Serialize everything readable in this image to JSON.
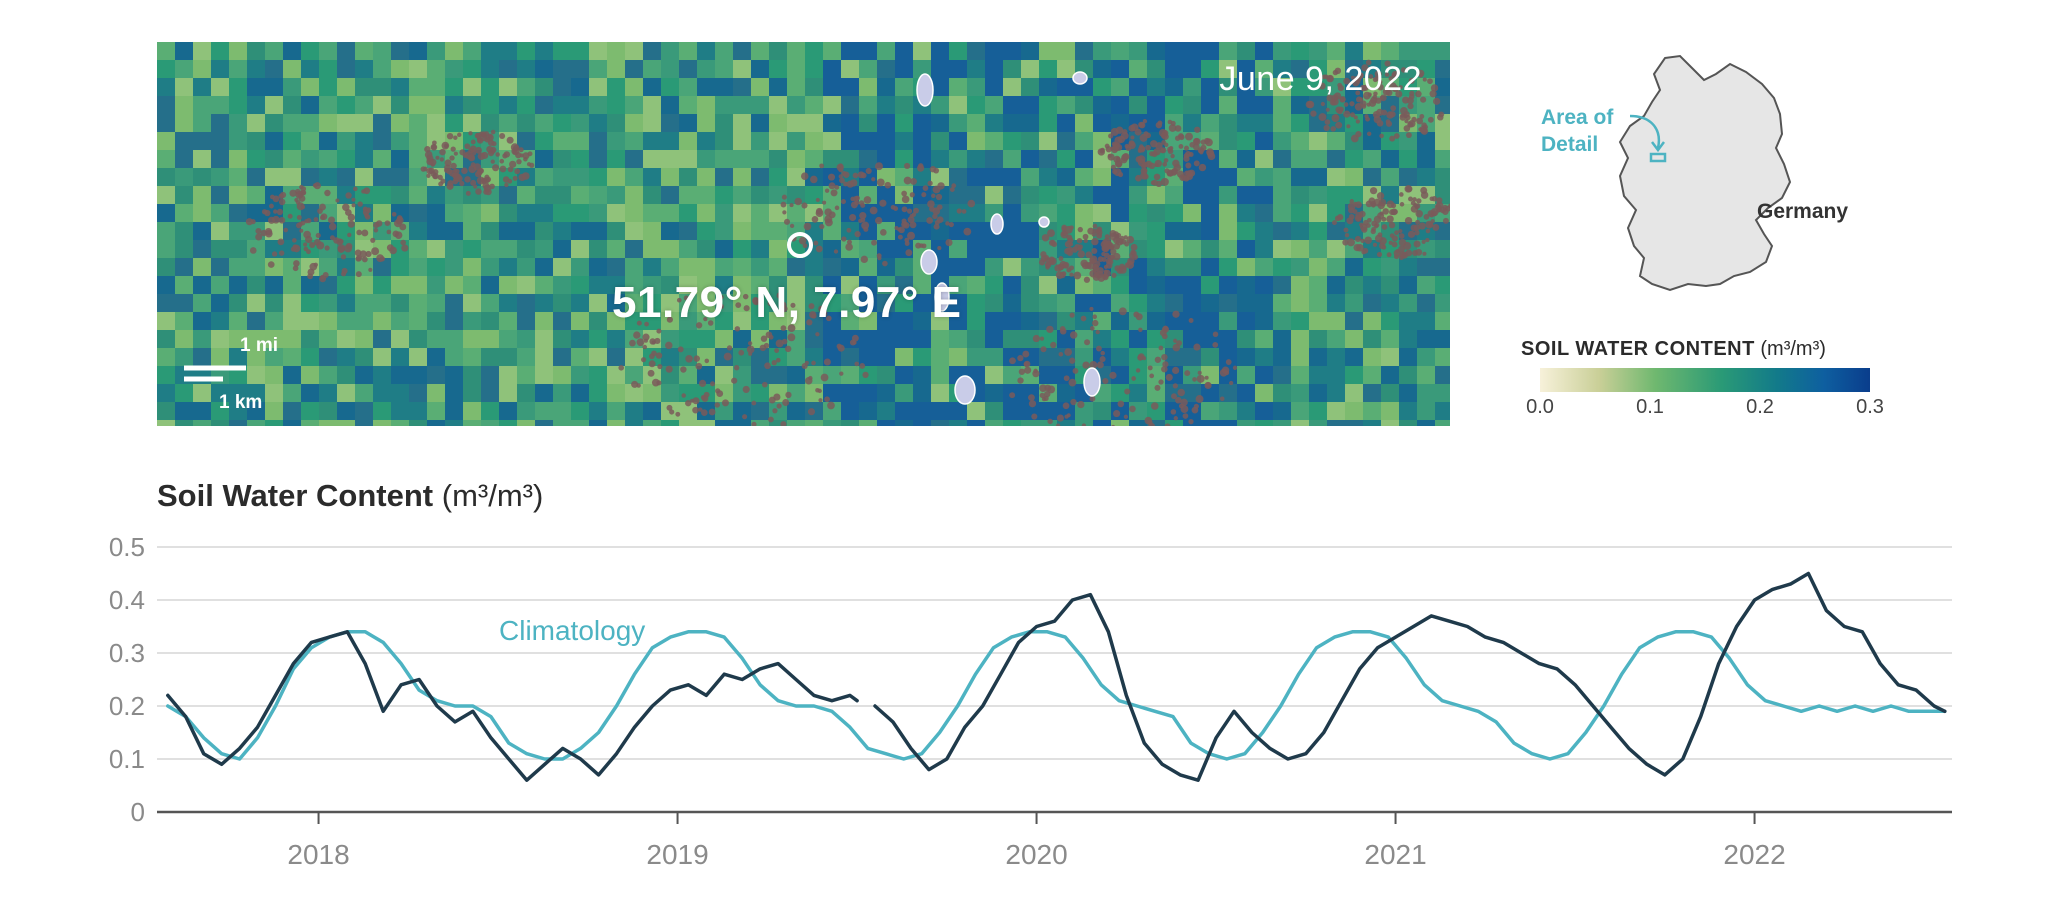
{
  "map": {
    "date": "June 9, 2022",
    "coordinates": "51.79° N, 7.97° E",
    "scale_mi": "1 mi",
    "scale_km": "1 km"
  },
  "locator": {
    "area_label_line1": "Area of",
    "area_label_line2": "Detail",
    "country": "Germany"
  },
  "legend": {
    "title": "SOIL WATER CONTENT",
    "unit": "(m³/m³)",
    "ticks": [
      "0.0",
      "0.1",
      "0.2",
      "0.3"
    ],
    "range": [
      0.0,
      0.3
    ],
    "colors": [
      "#f7f1da",
      "#6fb86f",
      "#2a9a76",
      "#0a3d8c"
    ]
  },
  "colors": {
    "observed": "#1f3a4b",
    "climatology": "#4db3c2",
    "grid": "#d6d6d6",
    "axis_text": "#8a8a8a"
  },
  "chart_data": {
    "type": "line",
    "title": "Soil Water Content",
    "title_unit": "(m³/m³)",
    "xlabel": "",
    "ylabel": "",
    "xlim": [
      2017.55,
      2022.55
    ],
    "ylim": [
      0,
      0.5
    ],
    "yticks": [
      "0",
      "0.1",
      "0.2",
      "0.3",
      "0.4",
      "0.5"
    ],
    "yticks_values": [
      0,
      0.1,
      0.2,
      0.3,
      0.4,
      0.5
    ],
    "xticks": [
      "2018",
      "2019",
      "2020",
      "2021",
      "2022"
    ],
    "xticks_values": [
      2018,
      2019,
      2020,
      2021,
      2022
    ],
    "grid": true,
    "series": [
      {
        "name": "",
        "x": [
          2017.58,
          2017.63,
          2017.68,
          2017.73,
          2017.78,
          2017.83,
          2017.88,
          2017.93,
          2017.98,
          2018.03,
          2018.08,
          2018.13,
          2018.18,
          2018.23,
          2018.28,
          2018.33,
          2018.38,
          2018.43,
          2018.48,
          2018.53,
          2018.58,
          2018.63,
          2018.68,
          2018.73,
          2018.78,
          2018.83,
          2018.88,
          2018.93,
          2018.98,
          2019.03,
          2019.08,
          2019.13,
          2019.18,
          2019.23,
          2019.28,
          2019.33,
          2019.38,
          2019.43,
          2019.48,
          2019.5
        ],
        "values": [
          0.22,
          0.18,
          0.11,
          0.09,
          0.12,
          0.16,
          0.22,
          0.28,
          0.32,
          0.33,
          0.34,
          0.28,
          0.19,
          0.24,
          0.25,
          0.2,
          0.17,
          0.19,
          0.14,
          0.1,
          0.06,
          0.09,
          0.12,
          0.1,
          0.07,
          0.11,
          0.16,
          0.2,
          0.23,
          0.24,
          0.22,
          0.26,
          0.25,
          0.27,
          0.28,
          0.25,
          0.22,
          0.21,
          0.22,
          0.21
        ]
      },
      {
        "name": "",
        "x": [
          2019.55,
          2019.6,
          2019.65,
          2019.7,
          2019.75,
          2019.8,
          2019.85,
          2019.9,
          2019.95,
          2020.0,
          2020.05,
          2020.1,
          2020.15,
          2020.2,
          2020.25,
          2020.3,
          2020.35,
          2020.4,
          2020.45,
          2020.5,
          2020.55,
          2020.6,
          2020.65,
          2020.7,
          2020.75,
          2020.8,
          2020.85,
          2020.9,
          2020.95,
          2021.0,
          2021.05,
          2021.1,
          2021.15,
          2021.2,
          2021.25,
          2021.3,
          2021.35,
          2021.4,
          2021.45,
          2021.5,
          2021.55,
          2021.6,
          2021.65,
          2021.7,
          2021.75,
          2021.8,
          2021.85,
          2021.9,
          2021.95,
          2022.0,
          2022.05,
          2022.1,
          2022.15,
          2022.2,
          2022.25,
          2022.3,
          2022.35,
          2022.4,
          2022.45,
          2022.5,
          2022.53
        ],
        "values": [
          0.2,
          0.17,
          0.12,
          0.08,
          0.1,
          0.16,
          0.2,
          0.26,
          0.32,
          0.35,
          0.36,
          0.4,
          0.41,
          0.34,
          0.22,
          0.13,
          0.09,
          0.07,
          0.06,
          0.14,
          0.19,
          0.15,
          0.12,
          0.1,
          0.11,
          0.15,
          0.21,
          0.27,
          0.31,
          0.33,
          0.35,
          0.37,
          0.36,
          0.35,
          0.33,
          0.32,
          0.3,
          0.28,
          0.27,
          0.24,
          0.2,
          0.16,
          0.12,
          0.09,
          0.07,
          0.1,
          0.18,
          0.28,
          0.35,
          0.4,
          0.42,
          0.43,
          0.45,
          0.38,
          0.35,
          0.34,
          0.28,
          0.24,
          0.23,
          0.2,
          0.19
        ]
      },
      {
        "name": "Climatology",
        "x": [
          2017.58,
          2017.63,
          2017.68,
          2017.73,
          2017.78,
          2017.83,
          2017.88,
          2017.93,
          2017.98,
          2018.03,
          2018.08,
          2018.13,
          2018.18,
          2018.23,
          2018.28,
          2018.33,
          2018.38,
          2018.43,
          2018.48,
          2018.53,
          2018.58,
          2018.63,
          2018.68,
          2018.73,
          2018.78,
          2018.83,
          2018.88,
          2018.93,
          2018.98,
          2019.03,
          2019.08,
          2019.13,
          2019.18,
          2019.23,
          2019.28,
          2019.33,
          2019.38,
          2019.43,
          2019.48,
          2019.53,
          2019.58,
          2019.63,
          2019.68,
          2019.73,
          2019.78,
          2019.83,
          2019.88,
          2019.93,
          2019.98,
          2020.03,
          2020.08,
          2020.13,
          2020.18,
          2020.23,
          2020.28,
          2020.33,
          2020.38,
          2020.43,
          2020.48,
          2020.53,
          2020.58,
          2020.63,
          2020.68,
          2020.73,
          2020.78,
          2020.83,
          2020.88,
          2020.93,
          2020.98,
          2021.03,
          2021.08,
          2021.13,
          2021.18,
          2021.23,
          2021.28,
          2021.33,
          2021.38,
          2021.43,
          2021.48,
          2021.53,
          2021.58,
          2021.63,
          2021.68,
          2021.73,
          2021.78,
          2021.83,
          2021.88,
          2021.93,
          2021.98,
          2022.03,
          2022.08,
          2022.13,
          2022.18,
          2022.23,
          2022.28,
          2022.33,
          2022.38,
          2022.43,
          2022.48,
          2022.53
        ],
        "values": [
          0.2,
          0.18,
          0.14,
          0.11,
          0.1,
          0.14,
          0.2,
          0.27,
          0.31,
          0.33,
          0.34,
          0.34,
          0.32,
          0.28,
          0.23,
          0.21,
          0.2,
          0.2,
          0.18,
          0.13,
          0.11,
          0.1,
          0.1,
          0.12,
          0.15,
          0.2,
          0.26,
          0.31,
          0.33,
          0.34,
          0.34,
          0.33,
          0.29,
          0.24,
          0.21,
          0.2,
          0.2,
          0.19,
          0.16,
          0.12,
          0.11,
          0.1,
          0.11,
          0.15,
          0.2,
          0.26,
          0.31,
          0.33,
          0.34,
          0.34,
          0.33,
          0.29,
          0.24,
          0.21,
          0.2,
          0.19,
          0.18,
          0.13,
          0.11,
          0.1,
          0.11,
          0.15,
          0.2,
          0.26,
          0.31,
          0.33,
          0.34,
          0.34,
          0.33,
          0.29,
          0.24,
          0.21,
          0.2,
          0.19,
          0.17,
          0.13,
          0.11,
          0.1,
          0.11,
          0.15,
          0.2,
          0.26,
          0.31,
          0.33,
          0.34,
          0.34,
          0.33,
          0.29,
          0.24,
          0.21,
          0.2,
          0.19,
          0.2,
          0.19,
          0.2,
          0.19,
          0.2,
          0.19,
          0.19,
          0.19
        ]
      }
    ],
    "annotations": [
      "Climatology"
    ]
  }
}
